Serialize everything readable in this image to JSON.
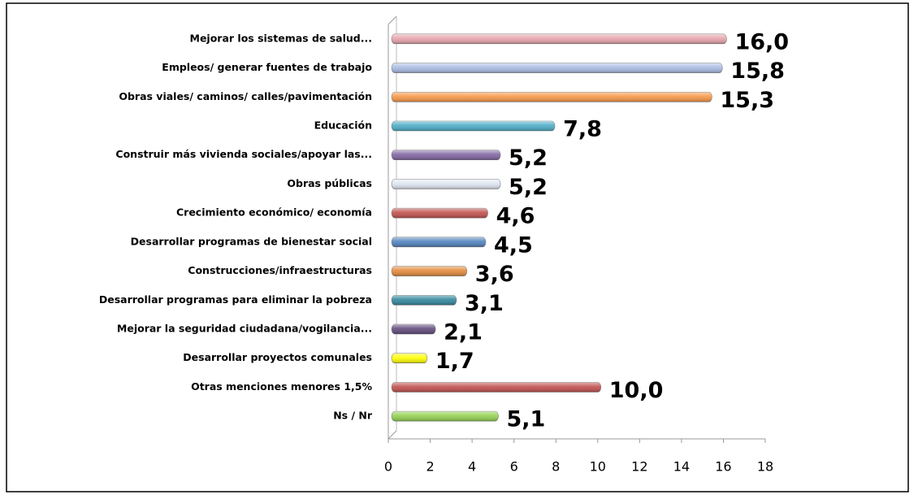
{
  "chart_data": {
    "type": "bar",
    "orientation": "horizontal",
    "categories": [
      "Mejorar los sistemas de salud...",
      "Empleos/ generar fuentes de trabajo",
      "Obras viales/ caminos/ calles/pavimentación",
      "Educación",
      "Construir más vivienda sociales/apoyar las...",
      "Obras públicas",
      "Crecimiento económico/ economía",
      "Desarrollar programas de bienestar social",
      "Construcciones/infraestructuras",
      "Desarrollar programas para eliminar la pobreza",
      "Mejorar la seguridad ciudadana/vogilancia...",
      "Desarrollar proyectos comunales",
      "Otras menciones menores 1,5%",
      "Ns / Nr"
    ],
    "values": [
      16.0,
      15.8,
      15.3,
      7.8,
      5.2,
      5.2,
      4.6,
      4.5,
      3.6,
      3.1,
      2.1,
      1.7,
      10.0,
      5.1
    ],
    "value_labels": [
      "16,0",
      "15,8",
      "15,3",
      "7,8",
      "5,2",
      "5,2",
      "4,6",
      "4,5",
      "3,6",
      "3,1",
      "2,1",
      "1,7",
      "10,0",
      "5,1"
    ],
    "colors": [
      "#e6a3ab",
      "#a9bbe3",
      "#f79646",
      "#4bacc6",
      "#8064a2",
      "#dfe6f2",
      "#c0504d",
      "#4f81bd",
      "#e3893a",
      "#31859c",
      "#604a7b",
      "#ffff00",
      "#c0504d",
      "#92d050"
    ],
    "xlim": [
      0,
      18
    ],
    "xticks": [
      0,
      2,
      4,
      6,
      8,
      10,
      12,
      14,
      16,
      18
    ]
  }
}
